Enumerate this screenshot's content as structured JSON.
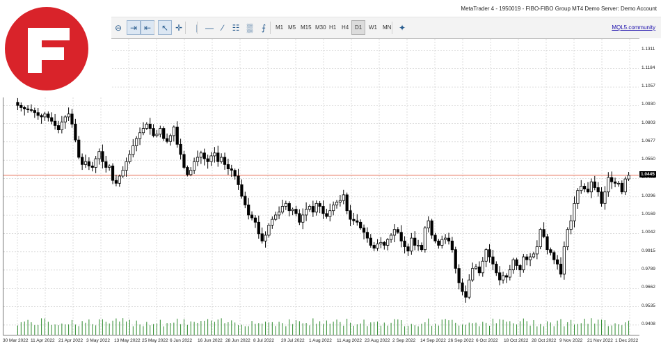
{
  "window": {
    "title": "MetaTrader 4 - 1950019 - FIBO-FIBO Group MT4 Demo Server: Demo Account"
  },
  "toolbar": {
    "tools": [
      {
        "name": "zoom-out-icon",
        "glyph": "⊖"
      },
      {
        "name": "chart-shift-icon",
        "glyph": "⇥",
        "active": true
      },
      {
        "name": "autoscroll-icon",
        "glyph": "⇤",
        "active": true
      },
      {
        "name": "cursor-icon",
        "glyph": "↖",
        "active": true
      },
      {
        "name": "crosshair-icon",
        "glyph": "✛"
      },
      {
        "name": "vertical-line-icon",
        "glyph": "|"
      },
      {
        "name": "horizontal-line-icon",
        "glyph": "—"
      },
      {
        "name": "trendline-icon",
        "glyph": "∕"
      },
      {
        "name": "text-label-icon",
        "glyph": "☷"
      },
      {
        "name": "fibonacci-icon",
        "glyph": "▒"
      },
      {
        "name": "gann-icon",
        "glyph": "⨍"
      }
    ],
    "timeframes": [
      "M1",
      "M5",
      "M15",
      "M30",
      "H1",
      "H4",
      "D1",
      "W1",
      "MN"
    ],
    "active_timeframe": "D1",
    "community_link": "MQL5.community"
  },
  "chart_data": {
    "type": "candlestick",
    "instrument_note": "",
    "y_ticks": [
      "1.1311",
      "1.1184",
      "1.1057",
      "1.0930",
      "1.0803",
      "1.0677",
      "1.0550",
      "1.0423",
      "1.0296",
      "1.0169",
      "1.0042",
      "0.9915",
      "0.9789",
      "0.9662",
      "0.9535",
      "0.9408"
    ],
    "current_price": "1.0445",
    "x_ticks": [
      "30 Mar 2022",
      "11 Apr 2022",
      "21 Apr 2022",
      "3 May 2022",
      "13 May 2022",
      "25 May 2022",
      "6 Jun 2022",
      "16 Jun 2022",
      "28 Jun 2022",
      "8 Jul 2022",
      "20 Jul 2022",
      "1 Aug 2022",
      "11 Aug 2022",
      "23 Aug 2022",
      "2 Sep 2022",
      "14 Sep 2022",
      "26 Sep 2022",
      "6 Oct 2022",
      "18 Oct 2022",
      "28 Oct 2022",
      "9 Nov 2022",
      "21 Nov 2022",
      "1 Dec 2022"
    ],
    "ylim": [
      0.934,
      1.139
    ],
    "grid": true,
    "colors": {
      "bull": "#ffffff",
      "bear": "#000000",
      "wick": "#000000",
      "volume": "#2e8b2e",
      "price_line": "#e8735a",
      "grid": "#c9c9c9"
    },
    "closes": [
      1.093,
      1.0915,
      1.0905,
      1.09,
      1.0895,
      1.088,
      1.086,
      1.085,
      1.087,
      1.0845,
      1.082,
      1.079,
      1.076,
      1.0815,
      1.085,
      1.087,
      1.08,
      1.069,
      1.057,
      1.052,
      1.054,
      1.051,
      1.05,
      1.056,
      1.061,
      1.054,
      1.05,
      1.051,
      1.041,
      1.039,
      1.044,
      1.048,
      1.054,
      1.059,
      1.065,
      1.07,
      1.074,
      1.077,
      1.08,
      1.077,
      1.072,
      1.073,
      1.077,
      1.07,
      1.068,
      1.072,
      1.078,
      1.066,
      1.059,
      1.05,
      1.045,
      1.048,
      1.054,
      1.057,
      1.06,
      1.056,
      1.054,
      1.058,
      1.06,
      1.054,
      1.057,
      1.052,
      1.049,
      1.048,
      1.044,
      1.038,
      1.03,
      1.024,
      1.017,
      1.015,
      1.012,
      1.004,
      0.999,
      1.003,
      1.01,
      1.014,
      1.017,
      1.019,
      1.023,
      1.025,
      1.02,
      1.021,
      1.018,
      1.012,
      1.017,
      1.021,
      1.023,
      1.019,
      1.025,
      1.023,
      1.018,
      1.016,
      1.02,
      1.024,
      1.026,
      1.027,
      1.031,
      1.02,
      1.014,
      1.013,
      1.012,
      1.008,
      1.005,
      1.001,
      0.996,
      0.994,
      0.997,
      0.998,
      0.996,
      1.0,
      1.003,
      1.007,
      1.005,
      0.999,
      0.995,
      0.992,
      1.001,
      0.996,
      0.996,
      0.993,
      1.008,
      1.013,
      1.003,
      0.999,
      0.996,
      1.0,
      1.001,
      0.999,
      0.993,
      0.98,
      0.97,
      0.964,
      0.96,
      0.972,
      0.98,
      0.981,
      0.977,
      0.985,
      0.993,
      0.988,
      0.983,
      0.977,
      0.972,
      0.975,
      0.974,
      0.979,
      0.986,
      0.982,
      0.979,
      0.988,
      0.986,
      0.988,
      0.99,
      0.995,
      1.007,
      1.002,
      0.993,
      0.991,
      0.986,
      0.983,
      0.976,
      0.995,
      1.007,
      1.013,
      1.025,
      1.034,
      1.037,
      1.035,
      1.033,
      1.04,
      1.036,
      1.033,
      1.025,
      1.033,
      1.043,
      1.04,
      1.039,
      1.039,
      1.033,
      1.042,
      1.0445
    ]
  }
}
